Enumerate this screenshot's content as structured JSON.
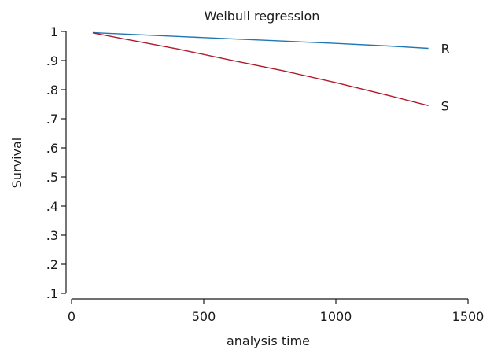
{
  "chart_data": {
    "type": "line",
    "title": "Weibull regression",
    "xlabel": "analysis time",
    "ylabel": "Survival",
    "xlim": [
      0,
      1500
    ],
    "ylim": [
      0.1,
      1.0
    ],
    "x_ticks": [
      0,
      500,
      1000,
      1500
    ],
    "x_tick_labels": [
      "0",
      "500",
      "1000",
      "1500"
    ],
    "y_ticks": [
      0.1,
      0.2,
      0.3,
      0.4,
      0.5,
      0.6,
      0.7,
      0.8,
      0.9,
      1.0
    ],
    "y_tick_labels": [
      ".1",
      ".2",
      ".3",
      ".4",
      ".5",
      ".6",
      ".7",
      ".8",
      ".9",
      "1"
    ],
    "grid": false,
    "legend": "none",
    "series": [
      {
        "name": "R",
        "color": "#1f77b4",
        "x": [
          80,
          200,
          400,
          600,
          800,
          1000,
          1200,
          1350
        ],
        "y": [
          0.996,
          0.991,
          0.983,
          0.975,
          0.967,
          0.959,
          0.95,
          0.942
        ]
      },
      {
        "name": "S",
        "color": "#b2182b",
        "x": [
          80,
          200,
          400,
          600,
          800,
          1000,
          1200,
          1350
        ],
        "y": [
          0.995,
          0.974,
          0.94,
          0.902,
          0.865,
          0.824,
          0.78,
          0.745
        ]
      }
    ]
  }
}
